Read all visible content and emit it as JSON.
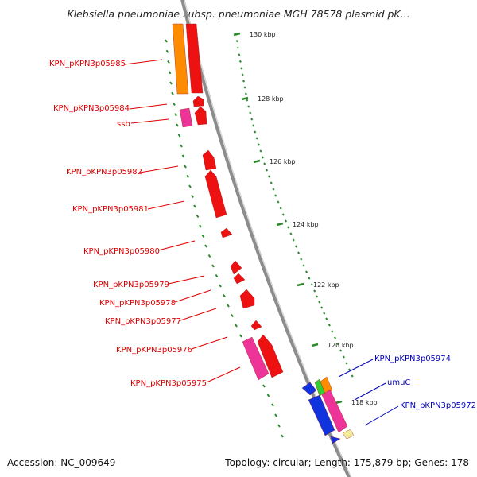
{
  "title": "Klebsiella pneumoniae subsp. pneumoniae MGH 78578 plasmid pK...",
  "footer": {
    "accession": "Accession: NC_009649",
    "topology": "Topology: circular; Length: 175,879 bp; Genes: 178"
  },
  "colors": {
    "red": "#ee1111",
    "orange": "#ff8c00",
    "pink": "#ee3399",
    "blue": "#1133dd",
    "green": "#33cc33",
    "yellow": "#f2ec9a",
    "tick_green": "#2a8a2a",
    "label_red": "#dd0000",
    "label_blue": "#0000bb",
    "backbone": "#8c8c8c"
  },
  "ticks": [
    "130 kbp",
    "128 kbp",
    "126 kbp",
    "124 kbp",
    "122 kbp",
    "120 kbp",
    "118 kbp"
  ],
  "genes": [
    {
      "name": "KPN_pKPN3p05985",
      "color": "red"
    },
    {
      "name": "KPN_pKPN3p05984",
      "color": "red"
    },
    {
      "name": "ssb",
      "color": "red"
    },
    {
      "name": "KPN_pKPN3p05982",
      "color": "red"
    },
    {
      "name": "KPN_pKPN3p05981",
      "color": "red"
    },
    {
      "name": "KPN_pKPN3p05980",
      "color": "red"
    },
    {
      "name": "KPN_pKPN3p05979",
      "color": "red"
    },
    {
      "name": "KPN_pKPN3p05978",
      "color": "red"
    },
    {
      "name": "KPN_pKPN3p05977",
      "color": "red"
    },
    {
      "name": "KPN_pKPN3p05976",
      "color": "red"
    },
    {
      "name": "KPN_pKPN3p05975",
      "color": "red"
    },
    {
      "name": "KPN_pKPN3p05974",
      "color": "blue"
    },
    {
      "name": "umuC",
      "color": "blue"
    },
    {
      "name": "KPN_pKPN3p05972",
      "color": "blue"
    }
  ]
}
